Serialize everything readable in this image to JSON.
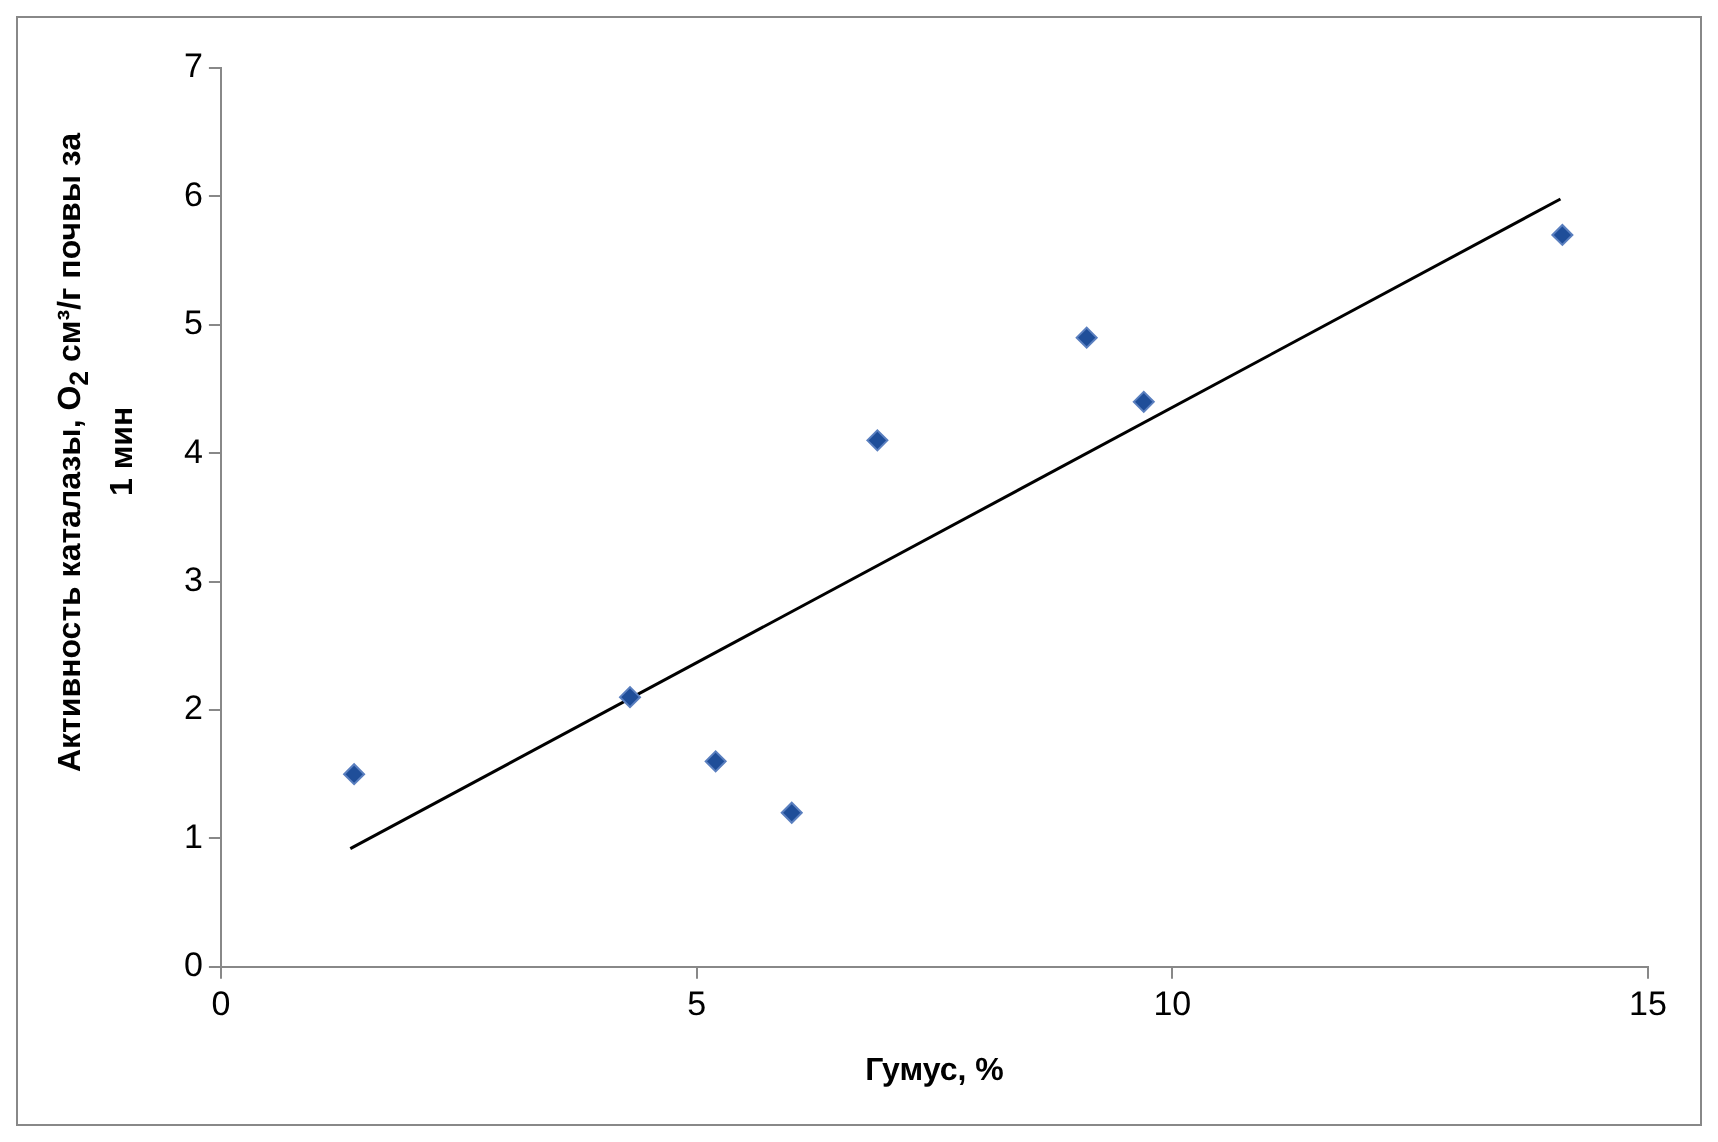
{
  "chart_data": {
    "type": "scatter",
    "xlabel": "Гумус, %",
    "ylabel": "Активность каталазы, O$_{2}$ см³/г почвы за 1 мин",
    "xlim": [
      0,
      15
    ],
    "xticks": [
      0,
      5,
      10,
      15
    ],
    "ylim": [
      0,
      7
    ],
    "yticks": [
      0,
      1,
      2,
      3,
      4,
      5,
      6,
      7
    ],
    "grid": false,
    "legend": false,
    "marker": "diamond",
    "series": [
      {
        "color": "#1f4e99",
        "x": [
          1.4,
          4.3,
          5.2,
          6.0,
          6.9,
          9.1,
          9.7,
          14.1
        ],
        "values": [
          1.5,
          2.1,
          1.6,
          1.2,
          4.1,
          4.9,
          4.4,
          5.7
        ]
      },
      {
        "type": "line",
        "color": "#000000",
        "x": [
          1.36,
          14.08
        ],
        "values": [
          0.92,
          5.98
        ],
        "marker": "none"
      }
    ]
  }
}
